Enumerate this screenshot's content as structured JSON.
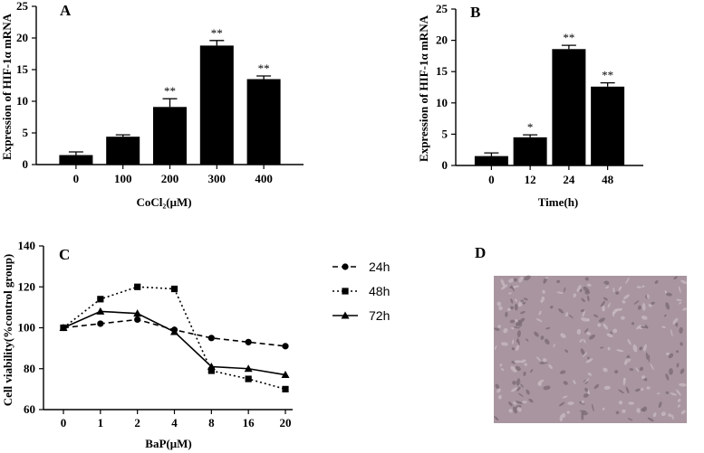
{
  "chart_data": [
    {
      "panel_label": "A",
      "type": "bar",
      "categories": [
        "0",
        "100",
        "200",
        "300",
        "400"
      ],
      "values": [
        1.5,
        4.4,
        9.1,
        18.8,
        13.5
      ],
      "errors": [
        0.5,
        0.3,
        1.3,
        0.8,
        0.5
      ],
      "significance": [
        "",
        "",
        "**",
        "**",
        "**"
      ],
      "ylabel": "Expression of HIF-1α mRNA",
      "xlabel": "CoCl₂(μM)",
      "ylim": [
        0,
        25
      ],
      "yticks": [
        "0",
        "5",
        "10",
        "15",
        "20",
        "25"
      ],
      "bar_color": "#000000"
    },
    {
      "panel_label": "B",
      "type": "bar",
      "categories": [
        "0",
        "12",
        "24",
        "48"
      ],
      "values": [
        1.5,
        4.5,
        18.6,
        12.6
      ],
      "errors": [
        0.5,
        0.4,
        0.6,
        0.6
      ],
      "significance": [
        "",
        "*",
        "**",
        "**"
      ],
      "ylabel": "Expression of HIF-1α mRNA",
      "xlabel": "Time(h)",
      "ylim": [
        0,
        25
      ],
      "yticks": [
        "0",
        "5",
        "10",
        "15",
        "20",
        "25"
      ],
      "bar_color": "#000000"
    },
    {
      "panel_label": "C",
      "type": "line",
      "categories": [
        "0",
        "1",
        "2",
        "4",
        "8",
        "16",
        "20"
      ],
      "series": [
        {
          "name": "24h",
          "values": [
            100,
            102,
            104,
            99,
            95,
            93,
            91
          ],
          "marker": "circle",
          "dash": "6,4"
        },
        {
          "name": "48h",
          "values": [
            100,
            114,
            120,
            119,
            79,
            75,
            70
          ],
          "marker": "square",
          "dash": "2,3"
        },
        {
          "name": "72h",
          "values": [
            100,
            108,
            107,
            98,
            81,
            80,
            77
          ],
          "marker": "triangle",
          "dash": ""
        }
      ],
      "ylabel": "Cell viability(%control group)",
      "xlabel": "BaP(μM)",
      "ylim": [
        60,
        140
      ],
      "yticks": [
        "60",
        "80",
        "100",
        "120",
        "140"
      ],
      "legend": "right"
    }
  ],
  "panel_d": {
    "label": "D",
    "image_icon": "cell-culture-micrograph",
    "image_color": "#a895a0"
  }
}
